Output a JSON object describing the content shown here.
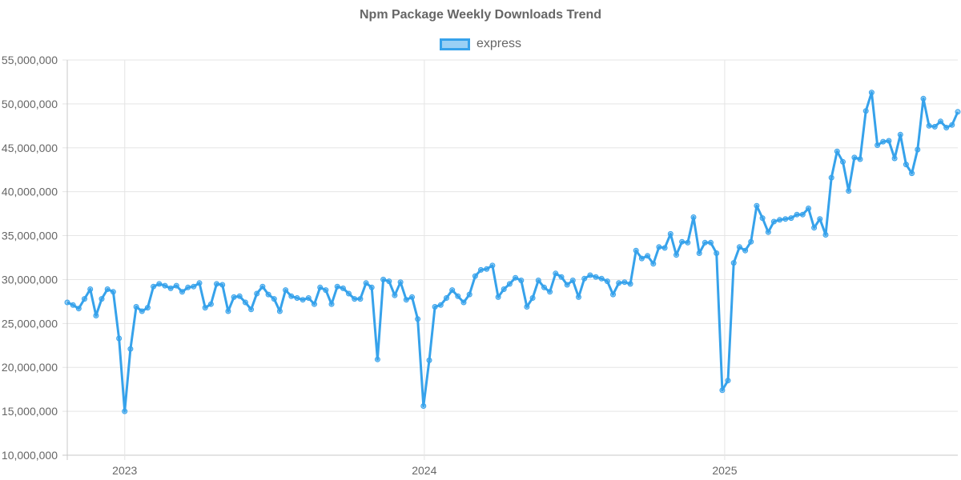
{
  "chart_data": {
    "type": "line",
    "title": "Npm Package Weekly Downloads Trend",
    "xlabel": "",
    "ylabel": "",
    "ylim": [
      10000000,
      55000000
    ],
    "y_ticks": [
      "10,000,000",
      "15,000,000",
      "20,000,000",
      "25,000,000",
      "30,000,000",
      "35,000,000",
      "40,000,000",
      "45,000,000",
      "50,000,000",
      "55,000,000"
    ],
    "x_ticks": [
      {
        "label": "2023",
        "date": "2023-01-01"
      },
      {
        "label": "2024",
        "date": "2024-01-01"
      },
      {
        "label": "2025",
        "date": "2025-01-01"
      }
    ],
    "xlim": [
      "2022-10-23",
      "2025-09-28"
    ],
    "grid": true,
    "legend_position": "top",
    "colors": {
      "line": "#36A2EB",
      "fill": "rgba(54,162,235,0.5)",
      "grid": "#e5e5e5",
      "text": "#666666"
    },
    "series": [
      {
        "name": "express",
        "points": [
          {
            "x": "2022-10-23",
            "y": 27400000
          },
          {
            "x": "2022-10-30",
            "y": 27100000
          },
          {
            "x": "2022-11-06",
            "y": 26700000
          },
          {
            "x": "2022-11-13",
            "y": 27800000
          },
          {
            "x": "2022-11-20",
            "y": 28900000
          },
          {
            "x": "2022-11-27",
            "y": 25900000
          },
          {
            "x": "2022-12-04",
            "y": 27800000
          },
          {
            "x": "2022-12-11",
            "y": 28900000
          },
          {
            "x": "2022-12-18",
            "y": 28600000
          },
          {
            "x": "2022-12-25",
            "y": 23300000
          },
          {
            "x": "2023-01-01",
            "y": 15000000
          },
          {
            "x": "2023-01-08",
            "y": 22100000
          },
          {
            "x": "2023-01-15",
            "y": 26900000
          },
          {
            "x": "2023-01-22",
            "y": 26400000
          },
          {
            "x": "2023-01-29",
            "y": 26800000
          },
          {
            "x": "2023-02-05",
            "y": 29200000
          },
          {
            "x": "2023-02-12",
            "y": 29500000
          },
          {
            "x": "2023-02-19",
            "y": 29300000
          },
          {
            "x": "2023-02-26",
            "y": 29000000
          },
          {
            "x": "2023-03-05",
            "y": 29300000
          },
          {
            "x": "2023-03-12",
            "y": 28600000
          },
          {
            "x": "2023-03-19",
            "y": 29100000
          },
          {
            "x": "2023-03-26",
            "y": 29200000
          },
          {
            "x": "2023-04-02",
            "y": 29600000
          },
          {
            "x": "2023-04-09",
            "y": 26800000
          },
          {
            "x": "2023-04-16",
            "y": 27200000
          },
          {
            "x": "2023-04-23",
            "y": 29500000
          },
          {
            "x": "2023-04-30",
            "y": 29400000
          },
          {
            "x": "2023-05-07",
            "y": 26400000
          },
          {
            "x": "2023-05-14",
            "y": 28000000
          },
          {
            "x": "2023-05-21",
            "y": 28100000
          },
          {
            "x": "2023-05-28",
            "y": 27400000
          },
          {
            "x": "2023-06-04",
            "y": 26600000
          },
          {
            "x": "2023-06-11",
            "y": 28400000
          },
          {
            "x": "2023-06-18",
            "y": 29200000
          },
          {
            "x": "2023-06-25",
            "y": 28300000
          },
          {
            "x": "2023-07-02",
            "y": 27800000
          },
          {
            "x": "2023-07-09",
            "y": 26400000
          },
          {
            "x": "2023-07-16",
            "y": 28800000
          },
          {
            "x": "2023-07-23",
            "y": 28100000
          },
          {
            "x": "2023-07-30",
            "y": 27900000
          },
          {
            "x": "2023-08-06",
            "y": 27700000
          },
          {
            "x": "2023-08-13",
            "y": 27900000
          },
          {
            "x": "2023-08-20",
            "y": 27200000
          },
          {
            "x": "2023-08-27",
            "y": 29100000
          },
          {
            "x": "2023-09-03",
            "y": 28800000
          },
          {
            "x": "2023-09-10",
            "y": 27200000
          },
          {
            "x": "2023-09-17",
            "y": 29200000
          },
          {
            "x": "2023-09-24",
            "y": 29000000
          },
          {
            "x": "2023-10-01",
            "y": 28400000
          },
          {
            "x": "2023-10-08",
            "y": 27800000
          },
          {
            "x": "2023-10-15",
            "y": 27800000
          },
          {
            "x": "2023-10-22",
            "y": 29600000
          },
          {
            "x": "2023-10-29",
            "y": 29100000
          },
          {
            "x": "2023-11-05",
            "y": 20900000
          },
          {
            "x": "2023-11-12",
            "y": 30000000
          },
          {
            "x": "2023-11-19",
            "y": 29800000
          },
          {
            "x": "2023-11-26",
            "y": 28200000
          },
          {
            "x": "2023-12-03",
            "y": 29700000
          },
          {
            "x": "2023-12-10",
            "y": 27700000
          },
          {
            "x": "2023-12-17",
            "y": 28000000
          },
          {
            "x": "2023-12-24",
            "y": 25500000
          },
          {
            "x": "2023-12-31",
            "y": 15600000
          },
          {
            "x": "2024-01-07",
            "y": 20800000
          },
          {
            "x": "2024-01-14",
            "y": 26900000
          },
          {
            "x": "2024-01-21",
            "y": 27100000
          },
          {
            "x": "2024-01-28",
            "y": 27900000
          },
          {
            "x": "2024-02-04",
            "y": 28800000
          },
          {
            "x": "2024-02-11",
            "y": 28100000
          },
          {
            "x": "2024-02-18",
            "y": 27400000
          },
          {
            "x": "2024-02-25",
            "y": 28300000
          },
          {
            "x": "2024-03-03",
            "y": 30400000
          },
          {
            "x": "2024-03-10",
            "y": 31100000
          },
          {
            "x": "2024-03-17",
            "y": 31200000
          },
          {
            "x": "2024-03-24",
            "y": 31600000
          },
          {
            "x": "2024-03-31",
            "y": 28000000
          },
          {
            "x": "2024-04-07",
            "y": 28900000
          },
          {
            "x": "2024-04-14",
            "y": 29500000
          },
          {
            "x": "2024-04-21",
            "y": 30200000
          },
          {
            "x": "2024-04-28",
            "y": 29900000
          },
          {
            "x": "2024-05-05",
            "y": 26900000
          },
          {
            "x": "2024-05-12",
            "y": 27900000
          },
          {
            "x": "2024-05-19",
            "y": 29900000
          },
          {
            "x": "2024-05-26",
            "y": 29100000
          },
          {
            "x": "2024-06-02",
            "y": 28600000
          },
          {
            "x": "2024-06-09",
            "y": 30700000
          },
          {
            "x": "2024-06-16",
            "y": 30300000
          },
          {
            "x": "2024-06-23",
            "y": 29400000
          },
          {
            "x": "2024-06-30",
            "y": 29900000
          },
          {
            "x": "2024-07-07",
            "y": 28000000
          },
          {
            "x": "2024-07-14",
            "y": 30100000
          },
          {
            "x": "2024-07-21",
            "y": 30500000
          },
          {
            "x": "2024-07-28",
            "y": 30300000
          },
          {
            "x": "2024-08-04",
            "y": 30100000
          },
          {
            "x": "2024-08-11",
            "y": 29800000
          },
          {
            "x": "2024-08-18",
            "y": 28300000
          },
          {
            "x": "2024-08-25",
            "y": 29600000
          },
          {
            "x": "2024-09-01",
            "y": 29700000
          },
          {
            "x": "2024-09-08",
            "y": 29500000
          },
          {
            "x": "2024-09-15",
            "y": 33300000
          },
          {
            "x": "2024-09-22",
            "y": 32400000
          },
          {
            "x": "2024-09-29",
            "y": 32700000
          },
          {
            "x": "2024-10-06",
            "y": 31800000
          },
          {
            "x": "2024-10-13",
            "y": 33700000
          },
          {
            "x": "2024-10-20",
            "y": 33600000
          },
          {
            "x": "2024-10-27",
            "y": 35200000
          },
          {
            "x": "2024-11-03",
            "y": 32800000
          },
          {
            "x": "2024-11-10",
            "y": 34300000
          },
          {
            "x": "2024-11-17",
            "y": 34200000
          },
          {
            "x": "2024-11-24",
            "y": 37100000
          },
          {
            "x": "2024-12-01",
            "y": 33000000
          },
          {
            "x": "2024-12-08",
            "y": 34200000
          },
          {
            "x": "2024-12-15",
            "y": 34200000
          },
          {
            "x": "2024-12-22",
            "y": 33000000
          },
          {
            "x": "2024-12-29",
            "y": 17400000
          },
          {
            "x": "2025-01-05",
            "y": 18500000
          },
          {
            "x": "2025-01-12",
            "y": 31900000
          },
          {
            "x": "2025-01-19",
            "y": 33700000
          },
          {
            "x": "2025-01-26",
            "y": 33300000
          },
          {
            "x": "2025-02-02",
            "y": 34300000
          },
          {
            "x": "2025-02-09",
            "y": 38400000
          },
          {
            "x": "2025-02-16",
            "y": 37000000
          },
          {
            "x": "2025-02-23",
            "y": 35400000
          },
          {
            "x": "2025-03-02",
            "y": 36600000
          },
          {
            "x": "2025-03-09",
            "y": 36800000
          },
          {
            "x": "2025-03-16",
            "y": 36900000
          },
          {
            "x": "2025-03-23",
            "y": 37000000
          },
          {
            "x": "2025-03-30",
            "y": 37400000
          },
          {
            "x": "2025-04-06",
            "y": 37400000
          },
          {
            "x": "2025-04-13",
            "y": 38100000
          },
          {
            "x": "2025-04-20",
            "y": 35900000
          },
          {
            "x": "2025-04-27",
            "y": 36900000
          },
          {
            "x": "2025-05-04",
            "y": 35100000
          },
          {
            "x": "2025-05-11",
            "y": 41600000
          },
          {
            "x": "2025-05-18",
            "y": 44600000
          },
          {
            "x": "2025-05-25",
            "y": 43400000
          },
          {
            "x": "2025-06-01",
            "y": 40100000
          },
          {
            "x": "2025-06-08",
            "y": 43900000
          },
          {
            "x": "2025-06-15",
            "y": 43700000
          },
          {
            "x": "2025-06-22",
            "y": 49200000
          },
          {
            "x": "2025-06-29",
            "y": 51300000
          },
          {
            "x": "2025-07-06",
            "y": 45300000
          },
          {
            "x": "2025-07-13",
            "y": 45700000
          },
          {
            "x": "2025-07-20",
            "y": 45800000
          },
          {
            "x": "2025-07-27",
            "y": 43800000
          },
          {
            "x": "2025-08-03",
            "y": 46500000
          },
          {
            "x": "2025-08-10",
            "y": 43100000
          },
          {
            "x": "2025-08-17",
            "y": 42100000
          },
          {
            "x": "2025-08-24",
            "y": 44800000
          },
          {
            "x": "2025-08-31",
            "y": 50600000
          },
          {
            "x": "2025-09-07",
            "y": 47500000
          },
          {
            "x": "2025-09-14",
            "y": 47400000
          },
          {
            "x": "2025-09-21",
            "y": 48000000
          },
          {
            "x": "2025-09-28",
            "y": 47300000
          },
          {
            "x": "2025-10-05",
            "y": 47600000
          },
          {
            "x": "2025-10-12",
            "y": 49100000
          }
        ]
      }
    ]
  }
}
